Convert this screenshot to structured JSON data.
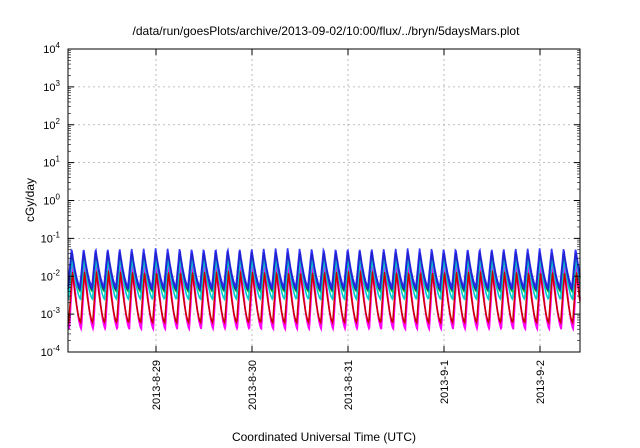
{
  "chart_data": {
    "type": "line",
    "title": "/data/run/goesPlots/archive/2013-09-02/10:00/flux/../bryn/5daysMars.plot",
    "xlabel": "Coordinated Universal Time (UTC)",
    "ylabel": "cGy/day",
    "yscale": "log",
    "ylim": [
      0.0001,
      10000
    ],
    "y_ticks": [
      {
        "base": "10",
        "exp": "-4"
      },
      {
        "base": "10",
        "exp": "-3"
      },
      {
        "base": "10",
        "exp": "-2"
      },
      {
        "base": "10",
        "exp": "-1"
      },
      {
        "base": "10",
        "exp": "0"
      },
      {
        "base": "10",
        "exp": "1"
      },
      {
        "base": "10",
        "exp": "2"
      },
      {
        "base": "10",
        "exp": "3"
      },
      {
        "base": "10",
        "exp": "4"
      }
    ],
    "xlim": [
      "2013-08-28T02:00",
      "2013-09-02T10:00"
    ],
    "x_ticks": [
      {
        "label": "2013-8-29",
        "t": "2013-08-29T00:00"
      },
      {
        "label": "2013-8-30",
        "t": "2013-08-30T00:00"
      },
      {
        "label": "2013-8-31",
        "t": "2013-08-31T00:00"
      },
      {
        "label": "2013-9-1",
        "t": "2013-09-01T00:00"
      },
      {
        "label": "2013-9-2",
        "t": "2013-09-02T00:00"
      }
    ],
    "grid": true,
    "oscillation_period_hours": 3,
    "series": [
      {
        "color": "#ff00ff",
        "peak": 0.022,
        "trough": 0.00045,
        "phase_hours": 0.25
      },
      {
        "color": "#ff00ff",
        "peak": 0.018,
        "trough": 0.0004,
        "phase_hours": 0.35
      },
      {
        "color": "#cc0000",
        "peak": 0.014,
        "trough": 0.0006,
        "phase_hours": 0.2
      },
      {
        "color": "#00aa00",
        "peak": 0.04,
        "trough": 0.004,
        "phase_hours": 0.1
      },
      {
        "color": "#00cccc",
        "peak": 0.03,
        "trough": 0.0025,
        "phase_hours": 0.15
      },
      {
        "color": "#3333ff",
        "peak": 0.055,
        "trough": 0.0055,
        "phase_hours": 0.0
      },
      {
        "color": "#2222cc",
        "peak": 0.045,
        "trough": 0.0045,
        "phase_hours": 0.05
      }
    ]
  }
}
